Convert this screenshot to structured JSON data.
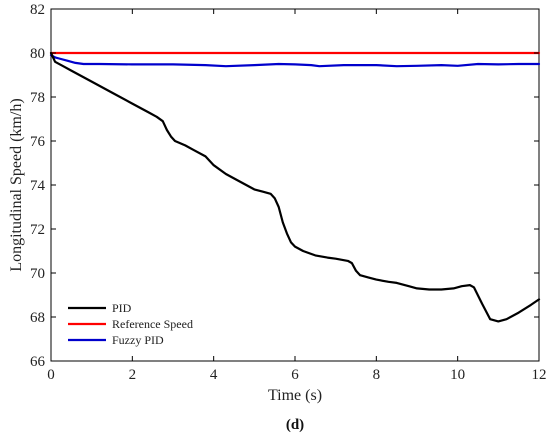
{
  "chart_data": {
    "type": "line",
    "xlabel": "Time (s)",
    "ylabel": "Longitudinal Speed (km/h)",
    "xlim": [
      0,
      12
    ],
    "ylim": [
      66,
      82
    ],
    "xticks": [
      0,
      2,
      4,
      6,
      8,
      10,
      12
    ],
    "yticks": [
      66,
      68,
      70,
      72,
      74,
      76,
      78,
      80,
      82
    ],
    "grid": false,
    "legend_position": "bottom-left",
    "caption": "(d)",
    "series": [
      {
        "name": "PID",
        "color": "#000000",
        "x": [
          0,
          0.1,
          0.3,
          0.5,
          1.0,
          1.5,
          2.0,
          2.4,
          2.6,
          2.75,
          2.85,
          2.95,
          3.05,
          3.3,
          3.5,
          3.8,
          4.0,
          4.3,
          4.6,
          5.0,
          5.2,
          5.4,
          5.5,
          5.6,
          5.7,
          5.8,
          5.9,
          6.0,
          6.2,
          6.5,
          6.8,
          7.0,
          7.3,
          7.4,
          7.5,
          7.6,
          7.8,
          8.0,
          8.3,
          8.5,
          8.8,
          9.0,
          9.3,
          9.6,
          9.9,
          10.1,
          10.3,
          10.4,
          10.6,
          10.8,
          11.0,
          11.2,
          11.5,
          11.8,
          12.0
        ],
        "y": [
          80.0,
          79.6,
          79.4,
          79.2,
          78.7,
          78.2,
          77.7,
          77.3,
          77.1,
          76.9,
          76.5,
          76.2,
          76.0,
          75.8,
          75.6,
          75.3,
          74.9,
          74.5,
          74.2,
          73.8,
          73.7,
          73.6,
          73.4,
          73.0,
          72.3,
          71.8,
          71.4,
          71.2,
          71.0,
          70.8,
          70.7,
          70.65,
          70.55,
          70.45,
          70.1,
          69.9,
          69.8,
          69.7,
          69.6,
          69.55,
          69.4,
          69.3,
          69.25,
          69.25,
          69.3,
          69.4,
          69.45,
          69.35,
          68.6,
          67.9,
          67.8,
          67.9,
          68.2,
          68.55,
          68.8
        ]
      },
      {
        "name": "Reference Speed",
        "color": "#ff0000",
        "x": [
          0,
          12
        ],
        "y": [
          80,
          80
        ]
      },
      {
        "name": "Fuzzy PID",
        "color": "#0000cc",
        "x": [
          0,
          0.1,
          0.2,
          0.4,
          0.6,
          0.8,
          1.2,
          2.0,
          3.0,
          3.8,
          4.3,
          5.0,
          5.6,
          6.0,
          6.4,
          6.6,
          7.2,
          8.0,
          8.5,
          9.0,
          9.6,
          10.0,
          10.5,
          11.0,
          11.5,
          12.0
        ],
        "y": [
          79.9,
          79.8,
          79.75,
          79.65,
          79.55,
          79.5,
          79.5,
          79.48,
          79.48,
          79.45,
          79.4,
          79.45,
          79.5,
          79.48,
          79.45,
          79.4,
          79.45,
          79.45,
          79.4,
          79.42,
          79.45,
          79.42,
          79.5,
          79.48,
          79.5,
          79.5
        ]
      }
    ]
  }
}
